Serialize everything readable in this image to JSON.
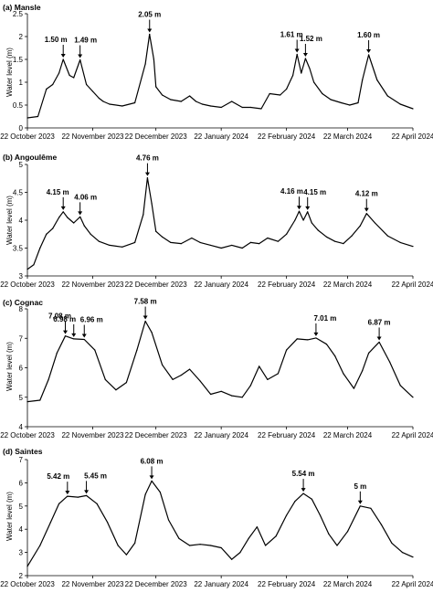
{
  "figure": {
    "x_tick_labels": [
      "22 October 2023",
      "22 November 2023",
      "22 December 2023",
      "22 January 2024",
      "22 February 2024",
      "22 March 2024",
      "22 April 2024"
    ]
  },
  "chart_data": [
    {
      "type": "line",
      "title": "(a) Mansle",
      "ylabel": "Water level (m)",
      "xlabel": "",
      "x_start": "2023-10-22",
      "x_end": "2024-04-22",
      "ylim": [
        0,
        2.5
      ],
      "yticks": [
        "0",
        "0.5",
        "1",
        "1.5",
        "2",
        "2.5"
      ],
      "series": [
        {
          "x": [
            "2023-10-22",
            "2023-10-27",
            "2023-10-31",
            "2023-11-03",
            "2023-11-06",
            "2023-11-08",
            "2023-11-11",
            "2023-11-13",
            "2023-11-16",
            "2023-11-19",
            "2023-11-22",
            "2023-11-25",
            "2023-11-27",
            "2023-11-30",
            "2023-12-06",
            "2023-12-12",
            "2023-12-17",
            "2023-12-19",
            "2023-12-21",
            "2023-12-22",
            "2023-12-25",
            "2023-12-29",
            "2024-01-03",
            "2024-01-07",
            "2024-01-10",
            "2024-01-13",
            "2024-01-17",
            "2024-01-22",
            "2024-01-27",
            "2024-02-01",
            "2024-02-05",
            "2024-02-10",
            "2024-02-14",
            "2024-02-19",
            "2024-02-22",
            "2024-02-25",
            "2024-02-27",
            "2024-02-29",
            "2024-03-02",
            "2024-03-04",
            "2024-03-06",
            "2024-03-10",
            "2024-03-14",
            "2024-03-19",
            "2024-03-23",
            "2024-03-27",
            "2024-03-29",
            "2024-04-01",
            "2024-04-05",
            "2024-04-10",
            "2024-04-16",
            "2024-04-22"
          ],
          "y": [
            0.22,
            0.25,
            0.85,
            0.95,
            1.2,
            1.5,
            1.15,
            1.1,
            1.49,
            0.95,
            0.8,
            0.65,
            0.58,
            0.52,
            0.48,
            0.55,
            1.4,
            2.05,
            1.5,
            0.9,
            0.72,
            0.62,
            0.58,
            0.7,
            0.58,
            0.52,
            0.48,
            0.45,
            0.58,
            0.45,
            0.45,
            0.42,
            0.75,
            0.72,
            0.85,
            1.15,
            1.61,
            1.2,
            1.52,
            1.3,
            1.0,
            0.75,
            0.62,
            0.55,
            0.5,
            0.55,
            1.05,
            1.6,
            1.05,
            0.7,
            0.52,
            0.42
          ]
        }
      ],
      "annotations": [
        "1.50 m",
        "1.49 m",
        "2.05 m",
        "1.61 m",
        "1.52 m",
        "1.60 m"
      ]
    },
    {
      "type": "line",
      "title": "(b) Angoulême",
      "ylabel": "Water level (m)",
      "xlabel": "",
      "x_start": "2023-10-22",
      "x_end": "2024-04-22",
      "ylim": [
        3,
        5
      ],
      "yticks": [
        "3",
        "3.5",
        "4",
        "4.5",
        "5"
      ],
      "series": [
        {
          "x": [
            "2023-10-22",
            "2023-10-25",
            "2023-10-28",
            "2023-10-31",
            "2023-11-03",
            "2023-11-06",
            "2023-11-08",
            "2023-11-10",
            "2023-11-13",
            "2023-11-16",
            "2023-11-18",
            "2023-11-21",
            "2023-11-25",
            "2023-11-30",
            "2023-12-06",
            "2023-12-12",
            "2023-12-16",
            "2023-12-18",
            "2023-12-20",
            "2023-12-22",
            "2023-12-25",
            "2023-12-29",
            "2024-01-03",
            "2024-01-08",
            "2024-01-12",
            "2024-01-17",
            "2024-01-22",
            "2024-01-27",
            "2024-02-01",
            "2024-02-05",
            "2024-02-09",
            "2024-02-13",
            "2024-02-18",
            "2024-02-22",
            "2024-02-26",
            "2024-02-28",
            "2024-03-01",
            "2024-03-03",
            "2024-03-05",
            "2024-03-08",
            "2024-03-12",
            "2024-03-16",
            "2024-03-20",
            "2024-03-24",
            "2024-03-28",
            "2024-03-31",
            "2024-04-04",
            "2024-04-10",
            "2024-04-16",
            "2024-04-22"
          ],
          "y": [
            3.12,
            3.2,
            3.5,
            3.75,
            3.85,
            4.05,
            4.15,
            4.05,
            3.95,
            4.06,
            3.9,
            3.75,
            3.62,
            3.55,
            3.52,
            3.6,
            4.1,
            4.76,
            4.3,
            3.8,
            3.7,
            3.6,
            3.58,
            3.68,
            3.6,
            3.55,
            3.5,
            3.55,
            3.5,
            3.6,
            3.58,
            3.68,
            3.62,
            3.75,
            4.0,
            4.16,
            4.0,
            4.15,
            3.95,
            3.82,
            3.7,
            3.62,
            3.58,
            3.72,
            3.9,
            4.12,
            3.95,
            3.72,
            3.6,
            3.53
          ]
        }
      ],
      "annotations": [
        "4.15 m",
        "4.06 m",
        "4.76 m",
        "4.16 m",
        "4.15 m",
        "4.12 m"
      ]
    },
    {
      "type": "line",
      "title": "(c) Cognac",
      "ylabel": "Water level (m)",
      "xlabel": "",
      "x_start": "2023-10-22",
      "x_end": "2024-04-22",
      "ylim": [
        4,
        8
      ],
      "yticks": [
        "4",
        "5",
        "6",
        "7",
        "8"
      ],
      "series": [
        {
          "x": [
            "2023-10-22",
            "2023-10-28",
            "2023-11-01",
            "2023-11-05",
            "2023-11-09",
            "2023-11-13",
            "2023-11-18",
            "2023-11-23",
            "2023-11-28",
            "2023-12-03",
            "2023-12-08",
            "2023-12-13",
            "2023-12-17",
            "2023-12-20",
            "2023-12-25",
            "2023-12-30",
            "2024-01-03",
            "2024-01-07",
            "2024-01-12",
            "2024-01-17",
            "2024-01-22",
            "2024-01-27",
            "2024-02-01",
            "2024-02-05",
            "2024-02-09",
            "2024-02-13",
            "2024-02-18",
            "2024-02-22",
            "2024-02-27",
            "2024-03-03",
            "2024-03-07",
            "2024-03-12",
            "2024-03-16",
            "2024-03-20",
            "2024-03-25",
            "2024-03-29",
            "2024-04-01",
            "2024-04-06",
            "2024-04-11",
            "2024-04-16",
            "2024-04-22"
          ],
          "y": [
            4.85,
            4.9,
            5.6,
            6.5,
            7.08,
            6.98,
            6.96,
            6.6,
            5.6,
            5.25,
            5.5,
            6.6,
            7.58,
            7.2,
            6.1,
            5.6,
            5.75,
            5.95,
            5.55,
            5.1,
            5.2,
            5.05,
            5.0,
            5.4,
            6.05,
            5.6,
            5.8,
            6.6,
            6.98,
            6.95,
            7.01,
            6.8,
            6.4,
            5.8,
            5.3,
            5.9,
            6.5,
            6.87,
            6.2,
            5.4,
            5.0
          ]
        }
      ],
      "annotations": [
        "7.08 m",
        "6.96 m",
        "7.58 m",
        "6.98 m",
        "7.01 m",
        "6.87 m"
      ]
    },
    {
      "type": "line",
      "title": "(d) Saintes",
      "ylabel": "Water level (m)",
      "xlabel": "",
      "x_start": "2023-10-22",
      "x_end": "2024-04-22",
      "ylim": [
        2,
        7
      ],
      "yticks": [
        "2",
        "3",
        "4",
        "5",
        "6",
        "7"
      ],
      "series": [
        {
          "x": [
            "2023-10-22",
            "2023-10-28",
            "2023-11-02",
            "2023-11-06",
            "2023-11-10",
            "2023-11-15",
            "2023-11-19",
            "2023-11-24",
            "2023-11-29",
            "2023-12-04",
            "2023-12-08",
            "2023-12-12",
            "2023-12-17",
            "2023-12-20",
            "2023-12-24",
            "2023-12-28",
            "2024-01-02",
            "2024-01-07",
            "2024-01-12",
            "2024-01-17",
            "2024-01-22",
            "2024-01-27",
            "2024-01-31",
            "2024-02-04",
            "2024-02-08",
            "2024-02-12",
            "2024-02-17",
            "2024-02-22",
            "2024-02-26",
            "2024-03-01",
            "2024-03-05",
            "2024-03-09",
            "2024-03-13",
            "2024-03-17",
            "2024-03-22",
            "2024-03-28",
            "2024-04-02",
            "2024-04-07",
            "2024-04-12",
            "2024-04-17",
            "2024-04-22"
          ],
          "y": [
            2.4,
            3.3,
            4.3,
            5.1,
            5.42,
            5.38,
            5.45,
            5.1,
            4.3,
            3.3,
            2.9,
            3.4,
            5.5,
            6.08,
            5.6,
            4.4,
            3.6,
            3.3,
            3.35,
            3.3,
            3.2,
            2.7,
            3.0,
            3.6,
            4.1,
            3.3,
            3.7,
            4.6,
            5.2,
            5.54,
            5.3,
            4.6,
            3.8,
            3.3,
            3.9,
            5.0,
            4.9,
            4.2,
            3.4,
            3.0,
            2.8
          ]
        }
      ],
      "annotations": [
        "5.42 m",
        "5.45 m",
        "6.08 m",
        "5.54 m",
        "5 m"
      ]
    }
  ]
}
